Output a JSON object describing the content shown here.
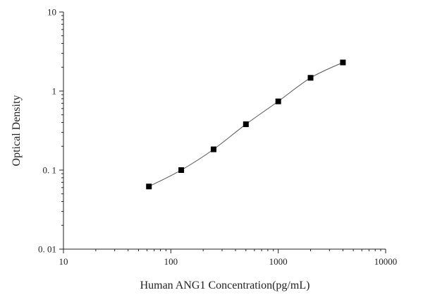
{
  "chart_data": {
    "type": "scatter",
    "title": "",
    "xlabel": "Human ANG1 Concentration(pg/mL)",
    "ylabel": "Optical Density",
    "x_scale": "log",
    "y_scale": "log",
    "xlim": [
      10,
      10000
    ],
    "ylim": [
      0.01,
      10
    ],
    "x_ticks": [
      10,
      100,
      1000,
      10000
    ],
    "x_tick_labels": [
      "10",
      "100",
      "1000",
      "10000"
    ],
    "y_ticks": [
      0.01,
      0.1,
      1,
      10
    ],
    "y_tick_labels": [
      "0. 01",
      "0. 1",
      "1",
      "10"
    ],
    "grid": false,
    "legend": "none",
    "fit_curve": true,
    "series": [
      {
        "x": [
          62.5,
          125,
          250,
          500,
          1000,
          2000,
          4000
        ],
        "y": [
          0.062,
          0.1,
          0.183,
          0.38,
          0.74,
          1.47,
          2.3
        ]
      }
    ],
    "colors": {
      "marker": "#000000",
      "line": "#555555",
      "axis": "#222222"
    }
  }
}
